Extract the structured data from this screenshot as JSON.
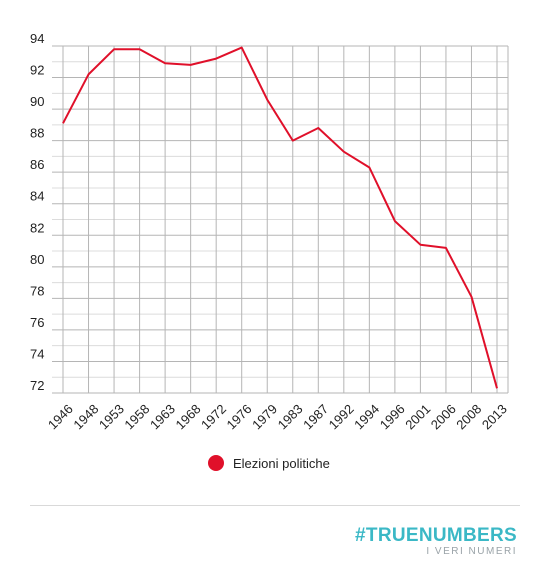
{
  "chart_data": {
    "type": "line",
    "x": [
      "1946",
      "1948",
      "1953",
      "1958",
      "1963",
      "1968",
      "1972",
      "1976",
      "1979",
      "1983",
      "1987",
      "1992",
      "1994",
      "1996",
      "2001",
      "2006",
      "2008",
      "2013"
    ],
    "series": [
      {
        "name": "Elezioni politiche",
        "values": [
          89.1,
          92.2,
          93.8,
          93.8,
          92.9,
          92.8,
          93.2,
          93.9,
          90.6,
          88.0,
          88.8,
          87.3,
          86.3,
          82.9,
          81.4,
          81.2,
          78.1,
          72.3
        ]
      }
    ],
    "y_ticks": [
      94,
      92,
      90,
      88,
      86,
      84,
      82,
      80,
      78,
      76,
      74,
      72
    ],
    "ylim": [
      72,
      94
    ],
    "grid": true,
    "legend_position": "bottom",
    "colors": {
      "line": "#e0102a",
      "grid": "#b5b5b5"
    }
  },
  "legend": {
    "label": "Elezioni politiche"
  },
  "brand": {
    "main": "#TRUENUMBERS",
    "sub": "I VERI NUMERI"
  }
}
